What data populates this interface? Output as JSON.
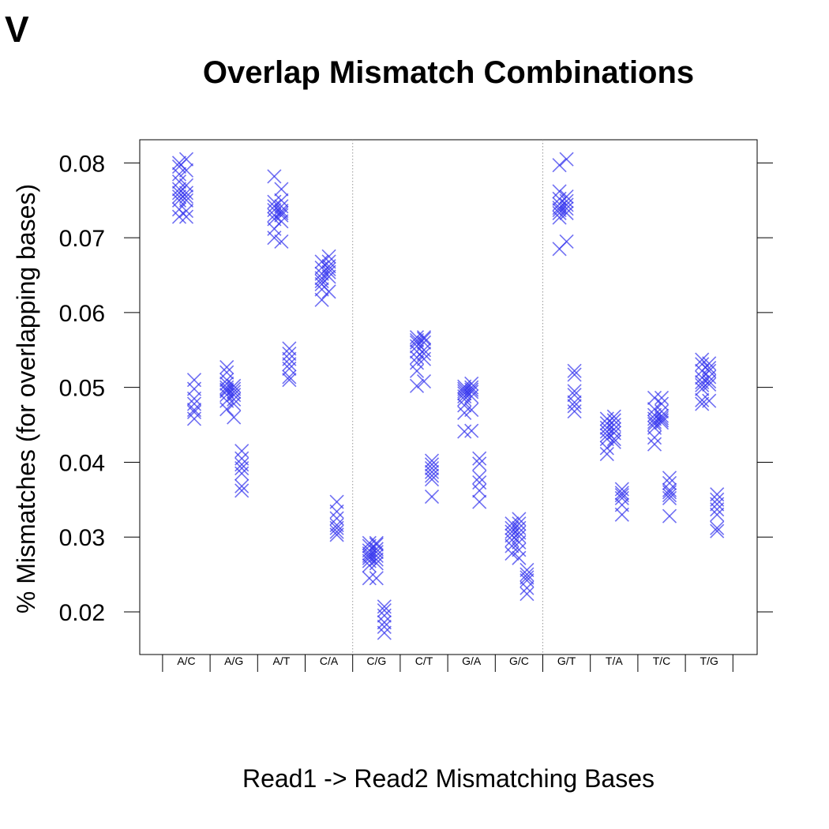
{
  "panel_label": "V",
  "chart_data": {
    "type": "scatter",
    "title": "Overlap Mismatch Combinations",
    "xlabel": "Read1 -> Read2 Mismatching Bases",
    "ylabel": "% Mismatches (for overlapping bases)",
    "ylim": [
      0.0143,
      0.0831
    ],
    "yticks": [
      0.02,
      0.03,
      0.04,
      0.05,
      0.06,
      0.07,
      0.08
    ],
    "ytick_labels": [
      "0.02",
      "0.03",
      "0.04",
      "0.05",
      "0.06",
      "0.07",
      "0.08"
    ],
    "marker": "x",
    "color": "#3333ee",
    "grid": false,
    "group_separators_after": [
      "C/A",
      "G/C"
    ],
    "categories": [
      "A/C",
      "A/G",
      "A/T",
      "C/A",
      "C/G",
      "C/T",
      "G/A",
      "G/C",
      "G/T",
      "T/A",
      "T/C",
      "T/G"
    ],
    "series": [
      {
        "values": [
          [
            0.08,
            0.0795,
            0.0785,
            0.0775,
            0.0765,
            0.076,
            0.0755,
            0.075,
            0.0738,
            0.0728
          ],
          [
            0.0527,
            0.052,
            0.051,
            0.0505,
            0.05,
            0.0497,
            0.0495,
            0.049,
            0.0482,
            0.0471
          ],
          [
            0.0782,
            0.0748,
            0.0742,
            0.0737,
            0.073,
            0.0725,
            0.0712,
            0.07
          ],
          [
            0.0668,
            0.066,
            0.0652,
            0.0646,
            0.0642,
            0.0638,
            0.0631,
            0.0617
          ],
          [
            0.0292,
            0.0288,
            0.0282,
            0.0278,
            0.0275,
            0.0272,
            0.0268,
            0.0262,
            0.0245
          ],
          [
            0.0567,
            0.0563,
            0.056,
            0.0555,
            0.0548,
            0.054,
            0.0533,
            0.0522,
            0.0502
          ],
          [
            0.0501,
            0.0498,
            0.0495,
            0.0492,
            0.0488,
            0.0484,
            0.0476,
            0.0466,
            0.0441
          ],
          [
            0.0318,
            0.0312,
            0.0307,
            0.0302,
            0.0296,
            0.0288,
            0.0278
          ],
          [
            0.0797,
            0.0762,
            0.0752,
            0.0745,
            0.074,
            0.0737,
            0.0733,
            0.0727,
            0.0685
          ],
          [
            0.0458,
            0.0452,
            0.0446,
            0.0441,
            0.0436,
            0.0431,
            0.0419,
            0.0411
          ],
          [
            0.0486,
            0.0471,
            0.0463,
            0.0458,
            0.0454,
            0.0451,
            0.0446,
            0.0433,
            0.0424
          ],
          [
            0.0537,
            0.0531,
            0.0522,
            0.0513,
            0.0507,
            0.0503,
            0.0498,
            0.0483,
            0.0478
          ]
        ]
      },
      {
        "values": [
          [
            0.0805,
            0.079,
            0.077,
            0.076,
            0.0755,
            0.075,
            0.0736,
            0.0728
          ],
          [
            0.0502,
            0.0498,
            0.0494,
            0.049,
            0.0484,
            0.0478,
            0.046
          ],
          [
            0.0765,
            0.075,
            0.0742,
            0.0736,
            0.0733,
            0.073,
            0.0722,
            0.0695
          ],
          [
            0.0675,
            0.0668,
            0.0662,
            0.0658,
            0.0654,
            0.0648,
            0.0628
          ],
          [
            0.0292,
            0.029,
            0.0284,
            0.028,
            0.0275,
            0.027,
            0.0265,
            0.0245
          ],
          [
            0.0567,
            0.0565,
            0.056,
            0.055,
            0.0545,
            0.0538,
            0.0508
          ],
          [
            0.0505,
            0.05,
            0.0497,
            0.0494,
            0.0488,
            0.047,
            0.0442
          ],
          [
            0.0324,
            0.0318,
            0.0312,
            0.0306,
            0.0301,
            0.0293,
            0.0283,
            0.0272
          ],
          [
            0.0805,
            0.0755,
            0.0749,
            0.0744,
            0.0739,
            0.0733,
            0.0695
          ],
          [
            0.0461,
            0.0456,
            0.045,
            0.0444,
            0.0439,
            0.0431,
            0.0427
          ],
          [
            0.0486,
            0.0478,
            0.0468,
            0.0462,
            0.0459,
            0.0456,
            0.0453
          ],
          [
            0.0532,
            0.0526,
            0.0522,
            0.0514,
            0.0508,
            0.0504,
            0.0482
          ]
        ]
      },
      {
        "values": [
          [
            0.051,
            0.0498,
            0.0485,
            0.0478,
            0.047,
            0.0467,
            0.0458
          ],
          [
            0.0415,
            0.0405,
            0.0397,
            0.0392,
            0.0385,
            0.0368,
            0.0362
          ],
          [
            0.0552,
            0.0545,
            0.0538,
            0.0531,
            0.0525,
            0.0514,
            0.051
          ],
          [
            0.0347,
            0.0334,
            0.0325,
            0.0316,
            0.0312,
            0.0307,
            0.0303
          ],
          [
            0.0207,
            0.0202,
            0.0195,
            0.0186,
            0.018,
            0.0172
          ],
          [
            0.0402,
            0.0397,
            0.0392,
            0.0387,
            0.0382,
            0.0377,
            0.0354
          ],
          [
            0.0405,
            0.0398,
            0.038,
            0.0373,
            0.0362,
            0.0347
          ],
          [
            0.0256,
            0.025,
            0.0246,
            0.0242,
            0.0232,
            0.0224
          ],
          [
            0.0522,
            0.0517,
            0.0495,
            0.049,
            0.048,
            0.0475,
            0.0468
          ],
          [
            0.0364,
            0.0359,
            0.0356,
            0.0352,
            0.0343,
            0.033
          ],
          [
            0.0379,
            0.0372,
            0.0363,
            0.036,
            0.0356,
            0.0352,
            0.0328
          ],
          [
            0.0357,
            0.035,
            0.0344,
            0.0337,
            0.033,
            0.0312,
            0.0308
          ]
        ]
      }
    ]
  }
}
